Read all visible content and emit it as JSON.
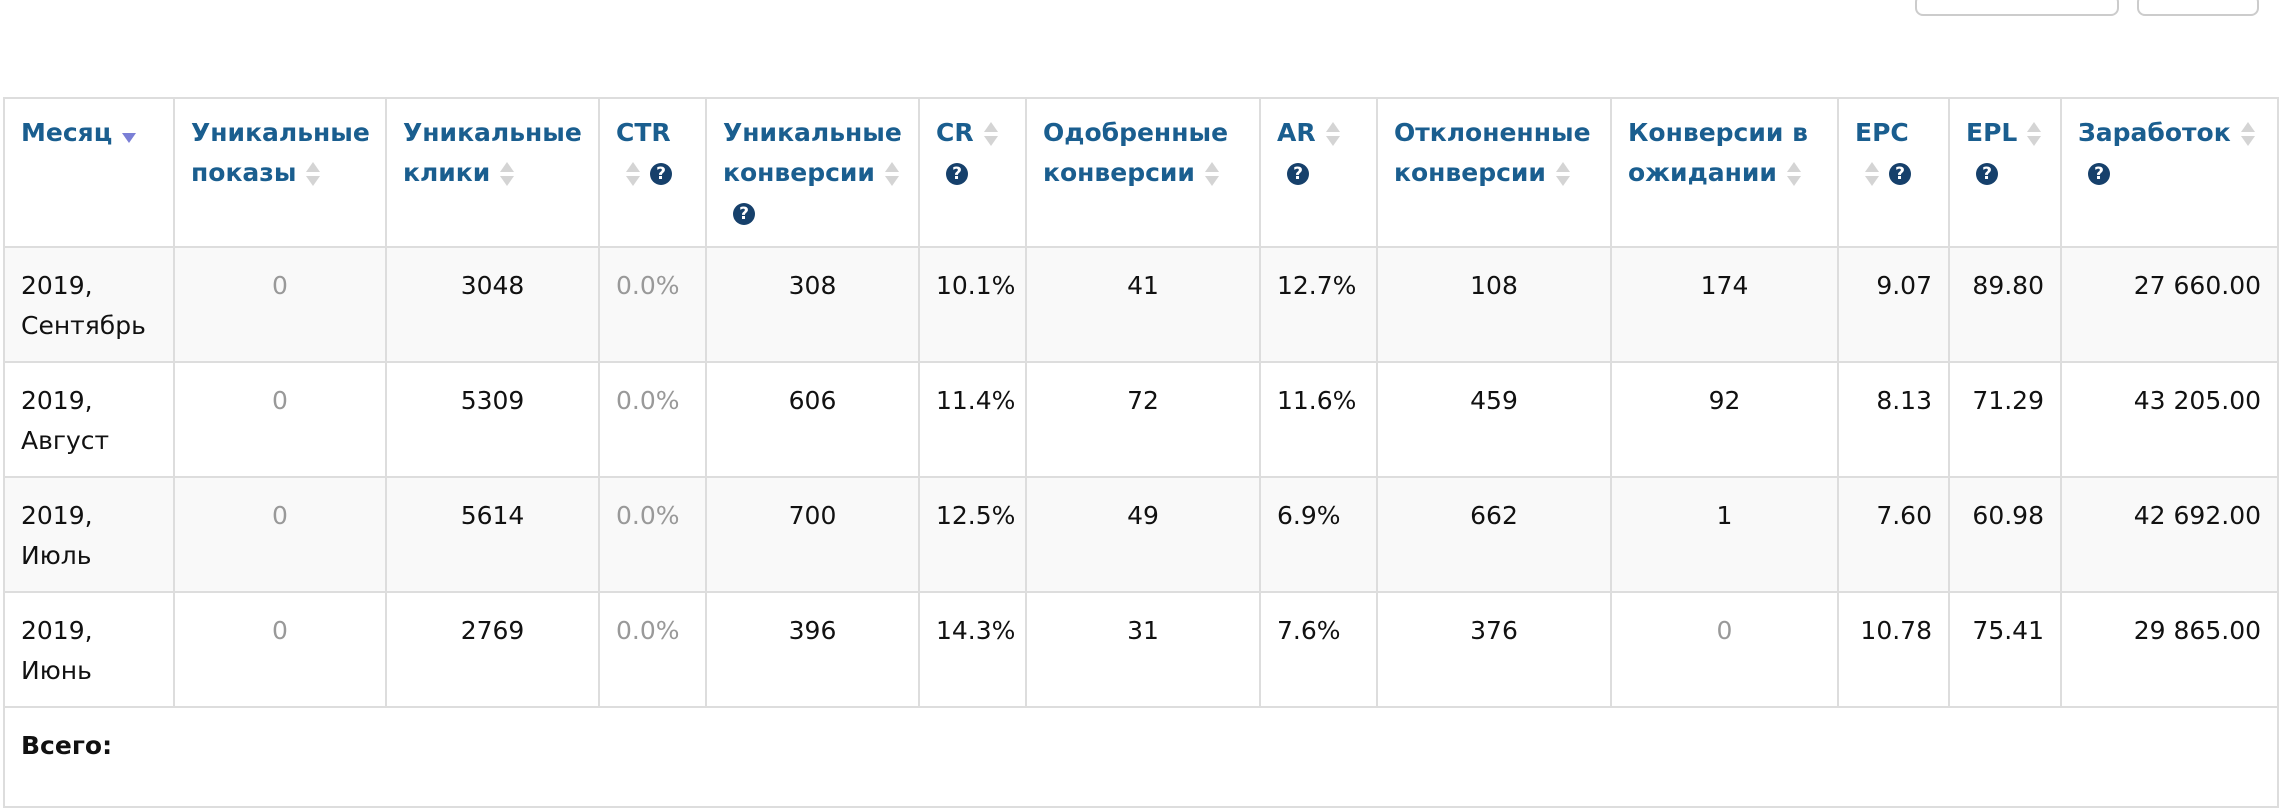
{
  "table": {
    "headers": [
      "Месяц",
      "Уникальные показы",
      "Уникальные клики",
      "CTR",
      "Уникальные конверсии",
      "CR",
      "Одобренные конверсии",
      "AR",
      "Отклоненные конверсии",
      "Конверсии в ожидании",
      "EPC",
      "EPL",
      "Заработок"
    ],
    "rows": [
      [
        "2019, Сентябрь",
        "0",
        "3048",
        "0.0%",
        "308",
        "10.1%",
        "41",
        "12.7%",
        "108",
        "174",
        "9.07",
        "89.80",
        "27 660.00"
      ],
      [
        "2019, Август",
        "0",
        "5309",
        "0.0%",
        "606",
        "11.4%",
        "72",
        "11.6%",
        "459",
        "92",
        "8.13",
        "71.29",
        "43 205.00"
      ],
      [
        "2019, Июль",
        "0",
        "5614",
        "0.0%",
        "700",
        "12.5%",
        "49",
        "6.9%",
        "662",
        "1",
        "7.60",
        "60.98",
        "42 692.00"
      ],
      [
        "2019, Июнь",
        "0",
        "2769",
        "0.0%",
        "396",
        "14.3%",
        "31",
        "7.6%",
        "376",
        "0",
        "10.78",
        "75.41",
        "29 865.00"
      ]
    ],
    "total_label": "Всего:"
  }
}
